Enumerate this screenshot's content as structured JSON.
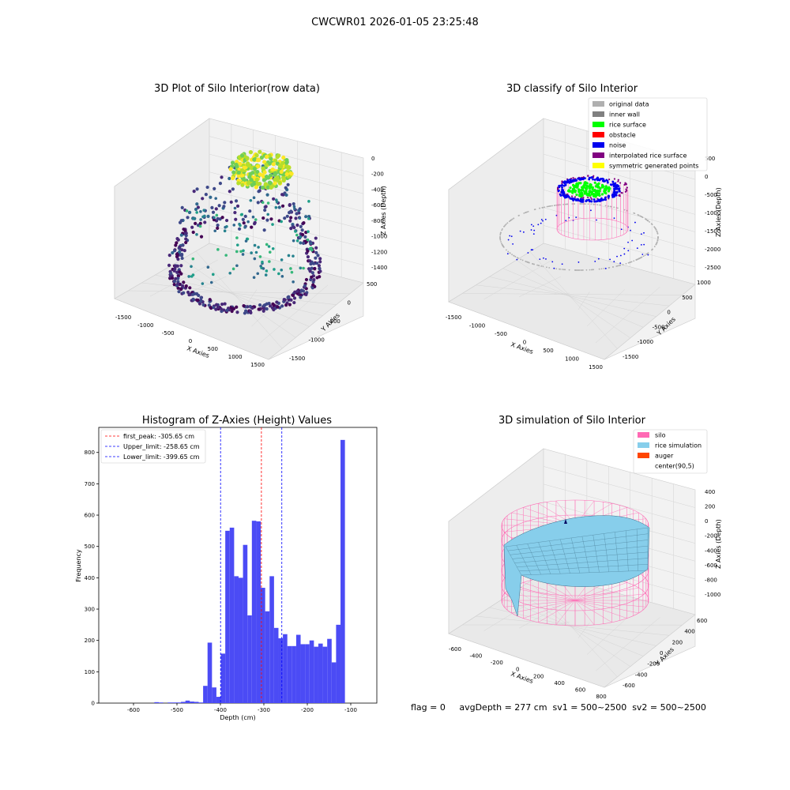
{
  "figure": {
    "suptitle": "CWCWR01 2026-01-05 23:25:48",
    "status_line": "flag = 0     avgDepth = 277 cm  sv1 = 500~2500  sv2 = 500~2500"
  },
  "chart_data": [
    {
      "type": "scatter",
      "title": "3D Plot of Silo Interior(row data)",
      "xlabel": "X Axies",
      "ylabel": "Y Axies",
      "zlabel": "Z Axies (Depth)",
      "x_ticks": [
        "-1500",
        "-1000",
        "-500",
        "0",
        "500",
        "1000",
        "1500"
      ],
      "y_ticks": [
        "-1500",
        "-1000",
        "-500",
        "0",
        "500"
      ],
      "z_ticks": [
        "0",
        "-200",
        "-400",
        "-600",
        "-800",
        "-1000",
        "-1200",
        "-1400"
      ],
      "xlim": [
        -1600,
        1600
      ],
      "ylim": [
        -1600,
        700
      ],
      "zlim": [
        -1450,
        50
      ],
      "colormap": "viridis",
      "grid": true
    },
    {
      "type": "scatter",
      "title": "3D classify of Silo Interior",
      "xlabel": "X Axies",
      "ylabel": "Y Axies",
      "zlabel": "Z Axies (Depth)",
      "x_ticks": [
        "-1500",
        "-1000",
        "-500",
        "0",
        "500",
        "1000",
        "1500"
      ],
      "y_ticks": [
        "-1500",
        "-1000",
        "-500",
        "0",
        "500",
        "1000"
      ],
      "z_ticks": [
        "500",
        "0",
        "-500",
        "-1000",
        "-1500",
        "-2000",
        "-2500"
      ],
      "xlim": [
        -1600,
        1600
      ],
      "ylim": [
        -1600,
        1100
      ],
      "zlim": [
        -2500,
        500
      ],
      "grid": true,
      "legend_position": "top-right",
      "legend": [
        {
          "label": "original data",
          "color": "#b0b0b0"
        },
        {
          "label": "inner wall",
          "color": "#808080"
        },
        {
          "label": "rice surface",
          "color": "#00ff00"
        },
        {
          "label": "obstacle",
          "color": "#ff0000"
        },
        {
          "label": "noise",
          "color": "#0000ee"
        },
        {
          "label": "interpolated rice surface",
          "color": "#800080"
        },
        {
          "label": "symmetric generated points",
          "color": "#ffff00"
        }
      ]
    },
    {
      "type": "bar",
      "title": "Histogram of Z-Axies (Height) Values",
      "xlabel": "Depth (cm)",
      "ylabel": "Frequency",
      "xlim": [
        -680,
        -40
      ],
      "ylim": [
        0,
        880
      ],
      "x_ticks": [
        -600,
        -500,
        -400,
        -300,
        -200,
        -100
      ],
      "y_ticks": [
        0,
        100,
        200,
        300,
        400,
        500,
        600,
        700,
        800
      ],
      "bin_width": 10.2,
      "bins": [
        {
          "x": -552,
          "value": 3
        },
        {
          "x": -541.8,
          "value": 2
        },
        {
          "x": -521.4,
          "value": 2
        },
        {
          "x": -511.2,
          "value": 2
        },
        {
          "x": -501,
          "value": 2
        },
        {
          "x": -490.8,
          "value": 4
        },
        {
          "x": -480.6,
          "value": 8
        },
        {
          "x": -470.4,
          "value": 5
        },
        {
          "x": -460.2,
          "value": 4
        },
        {
          "x": -450,
          "value": 2
        },
        {
          "x": -439.8,
          "value": 55
        },
        {
          "x": -429.6,
          "value": 193
        },
        {
          "x": -419.4,
          "value": 50
        },
        {
          "x": -409.2,
          "value": 20
        },
        {
          "x": -399,
          "value": 158
        },
        {
          "x": -388.8,
          "value": 550
        },
        {
          "x": -378.6,
          "value": 560
        },
        {
          "x": -368.4,
          "value": 405
        },
        {
          "x": -358.2,
          "value": 400
        },
        {
          "x": -348,
          "value": 505
        },
        {
          "x": -337.8,
          "value": 280
        },
        {
          "x": -327.6,
          "value": 582
        },
        {
          "x": -317.4,
          "value": 580
        },
        {
          "x": -307.2,
          "value": 368
        },
        {
          "x": -297,
          "value": 293
        },
        {
          "x": -286.8,
          "value": 405
        },
        {
          "x": -276.6,
          "value": 240
        },
        {
          "x": -266.4,
          "value": 207
        },
        {
          "x": -256.2,
          "value": 220
        },
        {
          "x": -246,
          "value": 182
        },
        {
          "x": -235.8,
          "value": 182
        },
        {
          "x": -225.6,
          "value": 218
        },
        {
          "x": -215.4,
          "value": 188
        },
        {
          "x": -205.2,
          "value": 188
        },
        {
          "x": -195,
          "value": 200
        },
        {
          "x": -184.8,
          "value": 180
        },
        {
          "x": -174.6,
          "value": 190
        },
        {
          "x": -164.4,
          "value": 180
        },
        {
          "x": -154.2,
          "value": 205
        },
        {
          "x": -144,
          "value": 130
        },
        {
          "x": -133.8,
          "value": 250
        },
        {
          "x": -123.6,
          "value": 840
        }
      ],
      "bar_color": "#4b4bf5",
      "legend_position": "top-left",
      "vlines": [
        {
          "label": "first_peak: -305.65 cm",
          "x": -305.65,
          "color": "#ff0000"
        },
        {
          "label": "Upper_limit: -258.65 cm",
          "x": -258.65,
          "color": "#0000ff"
        },
        {
          "label": "Lower_limit: -399.65 cm",
          "x": -399.65,
          "color": "#0000ff"
        }
      ]
    },
    {
      "type": "surface",
      "title": "3D simulation of Silo Interior",
      "xlabel": "X Axies",
      "ylabel": "Y Axies",
      "zlabel": "Z Axies (Depth)",
      "x_ticks": [
        "-600",
        "-400",
        "-200",
        "0",
        "200",
        "400",
        "600",
        "800"
      ],
      "y_ticks": [
        "-600",
        "-400",
        "-200",
        "0",
        "200",
        "400",
        "600"
      ],
      "z_ticks": [
        "400",
        "200",
        "0",
        "-200",
        "-400",
        "-600",
        "-800",
        "-1000"
      ],
      "xlim": [
        -650,
        850
      ],
      "ylim": [
        -650,
        650
      ],
      "zlim": [
        -1100,
        450
      ],
      "grid": true,
      "legend_position": "top-right",
      "legend": [
        {
          "label": "silo",
          "color": "#ff69b4"
        },
        {
          "label": "rice simulation",
          "color": "#87ceeb"
        },
        {
          "label": "auger",
          "color": "#ff4500"
        },
        {
          "label": "center(90,5)",
          "color": ""
        }
      ]
    }
  ]
}
